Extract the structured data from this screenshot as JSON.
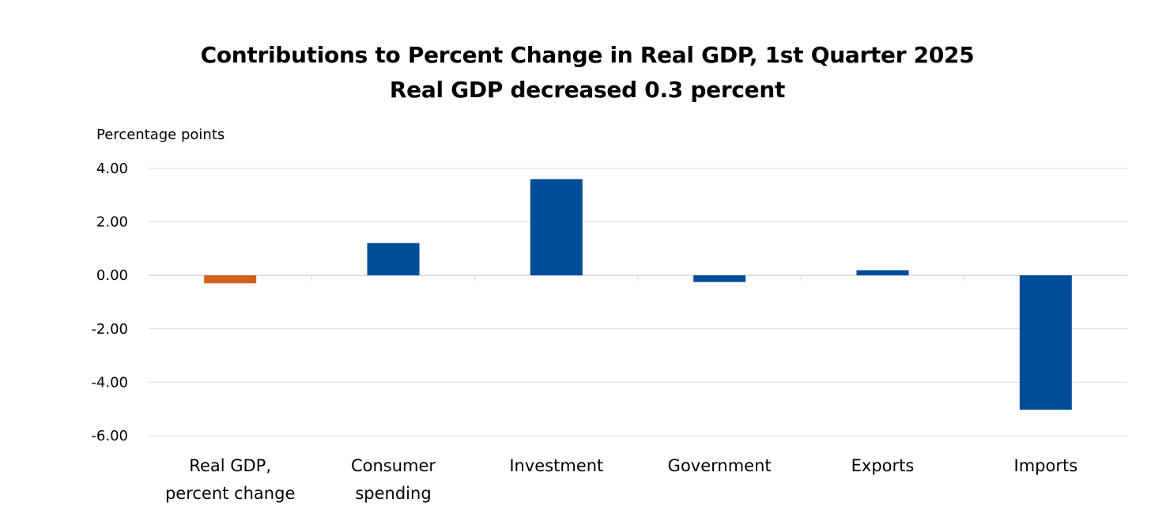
{
  "chart_data": {
    "type": "bar",
    "title": "Contributions to Percent Change in Real GDP, 1st Quarter 2025",
    "subtitle": "Real GDP decreased 0.3 percent",
    "xlabel": "",
    "ylabel": "Percentage points",
    "ylim": [
      -6,
      4
    ],
    "yticks": [
      4,
      2,
      0,
      -2,
      -4,
      -6
    ],
    "ytick_labels": [
      "4.00",
      "2.00",
      "0.00",
      "-2.00",
      "-4.00",
      "-6.00"
    ],
    "grid": true,
    "legend": "none",
    "categories": [
      [
        "Real GDP,",
        "percent change"
      ],
      [
        "Consumer",
        "spending"
      ],
      [
        "Investment"
      ],
      [
        "Government"
      ],
      [
        "Exports"
      ],
      [
        "Imports"
      ]
    ],
    "values": [
      -0.3,
      1.21,
      3.6,
      -0.25,
      0.19,
      -5.03
    ],
    "colors": [
      "#D0621C",
      "#004C97",
      "#004C97",
      "#004C97",
      "#004C97",
      "#004C97"
    ]
  }
}
